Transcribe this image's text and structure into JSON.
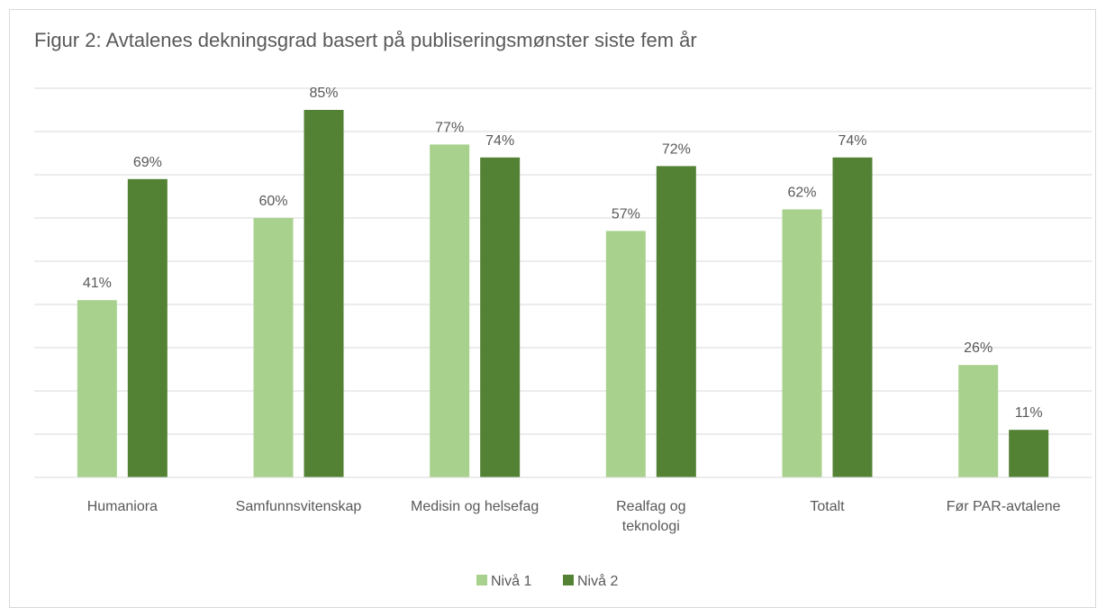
{
  "chart_data": {
    "type": "bar",
    "title": "Figur 2: Avtalenes dekningsgrad basert på publiseringsmønster siste fem år",
    "categories": [
      "Humaniora",
      "Samfunnsvitenskap",
      "Medisin og helsefag",
      "Realfag og teknologi",
      "Totalt",
      "Før PAR-avtalene"
    ],
    "series": [
      {
        "name": "Nivå 1",
        "color": "#a9d18e",
        "values": [
          41,
          60,
          77,
          57,
          62,
          26
        ],
        "value_labels": [
          "41%",
          "60%",
          "77%",
          "57%",
          "62%",
          "26%"
        ]
      },
      {
        "name": "Nivå 2",
        "color": "#548235",
        "values": [
          69,
          85,
          74,
          72,
          74,
          11
        ],
        "value_labels": [
          "69%",
          "85%",
          "74%",
          "72%",
          "74%",
          "11%"
        ]
      }
    ],
    "ylim": [
      0,
      90
    ],
    "yticks": [
      0,
      10,
      20,
      30,
      40,
      50,
      60,
      70,
      80,
      90
    ],
    "grid": true,
    "legend": "bottom"
  }
}
